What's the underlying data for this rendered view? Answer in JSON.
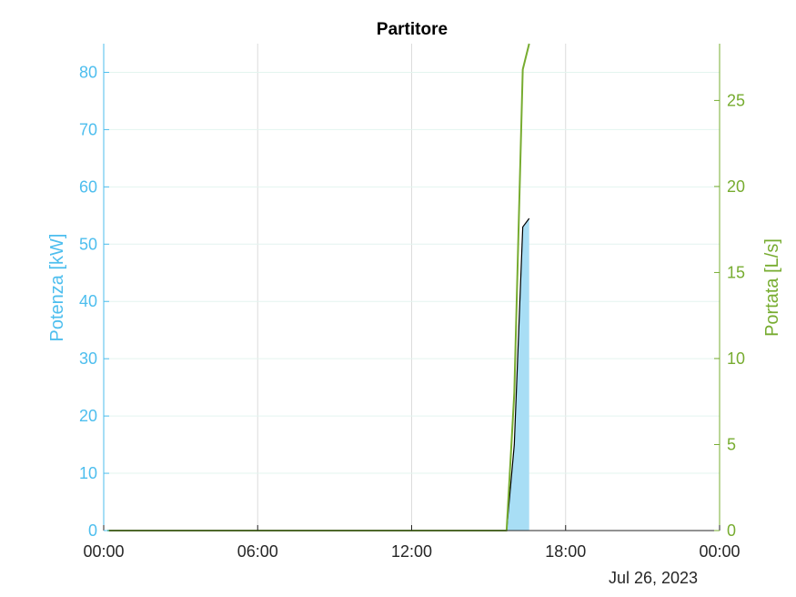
{
  "chart_data": {
    "type": "area",
    "title": "Partitore",
    "date_label": "Jul 26, 2023",
    "xlabel": "",
    "x_ticks": [
      "00:00",
      "06:00",
      "12:00",
      "18:00",
      "00:00"
    ],
    "x_tick_hours": [
      0,
      6,
      12,
      18,
      24
    ],
    "xlim_hours": [
      0,
      24
    ],
    "grid": true,
    "y_left": {
      "label": "Potenza [kW]",
      "ylim": [
        0,
        85
      ],
      "ticks": [
        0,
        10,
        20,
        30,
        40,
        50,
        60,
        70,
        80
      ],
      "color": "#4DBEEE"
    },
    "y_right": {
      "label": "Portata [L/s]",
      "ylim": [
        0,
        28.3
      ],
      "ticks": [
        0,
        5,
        10,
        15,
        20,
        25
      ],
      "color": "#77AC30"
    },
    "series": [
      {
        "name": "Potenza",
        "axis": "left",
        "style": "area",
        "fill": "#A8DEF5",
        "line": "#000000",
        "x_hours": [
          0.15,
          1,
          2,
          3,
          4,
          5,
          6,
          7,
          8,
          9,
          10,
          11,
          12,
          13,
          14,
          15,
          15.7,
          16.0,
          16.33,
          16.58
        ],
        "values": [
          0,
          0,
          0,
          0,
          0,
          0,
          0,
          0,
          0,
          0,
          0,
          0,
          0,
          0,
          0,
          0,
          0,
          15,
          53,
          54.5
        ]
      },
      {
        "name": "Portata",
        "axis": "right",
        "style": "line",
        "color": "#77AC30",
        "x_hours": [
          0.15,
          1,
          2,
          3,
          4,
          5,
          6,
          7,
          8,
          9,
          10,
          11,
          12,
          13,
          14,
          15,
          15.7,
          16.0,
          16.33,
          16.58
        ],
        "values": [
          0,
          0,
          0,
          0,
          0,
          0,
          0,
          0,
          0,
          0,
          0,
          0,
          0,
          0,
          0,
          0,
          0,
          8,
          26.8,
          28.3
        ]
      }
    ]
  }
}
